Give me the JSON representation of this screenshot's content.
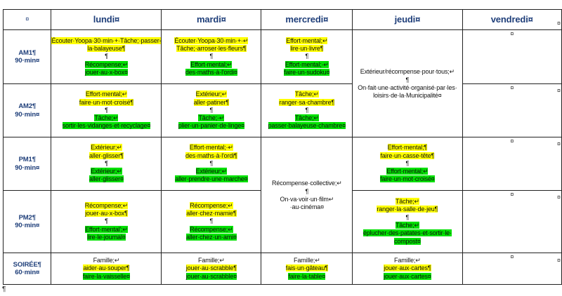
{
  "days": [
    "lundi¤",
    "mardi¤",
    "mercredi¤",
    "jeudi¤",
    "vendredi¤"
  ],
  "corner": "¤",
  "slots": [
    {
      "name": "AM1¶",
      "dur": "90·min¤"
    },
    {
      "name": "AM2¶",
      "dur": "90·min¤"
    },
    {
      "name": "PM1¶",
      "dur": "90·min¤"
    },
    {
      "name": "PM2¶",
      "dur": "90·min¤"
    },
    {
      "name": "SOIRÉE¶",
      "dur": "60·min¤"
    }
  ],
  "cells": {
    "am1_lundi": [
      {
        "t": "Écouter·Yoopa·30·min·+·Tâche;·passer-",
        "c": "y"
      },
      {
        "t": "la·balayeuse¶",
        "c": "y"
      },
      {
        "t": "¶",
        "c": ""
      },
      {
        "t": "Récompense;↵",
        "c": "g"
      },
      {
        "t": "jouer·au·x-box¤",
        "c": "g"
      }
    ],
    "am1_mardi": [
      {
        "t": "Écouter·Yoopa·30·min·+·↵",
        "c": "y"
      },
      {
        "t": "Tâche;·arroser·les·fleurs¶",
        "c": "y"
      },
      {
        "t": "¶",
        "c": ""
      },
      {
        "t": "Effort·mental;↵",
        "c": "g"
      },
      {
        "t": "des·maths·à·l'ordi¤",
        "c": "g"
      }
    ],
    "am1_mercredi": [
      {
        "t": "Effort·mental;↵",
        "c": "y"
      },
      {
        "t": "lire·un·livre¶",
        "c": "y"
      },
      {
        "t": "¶",
        "c": ""
      },
      {
        "t": "Effort·mental;·↵",
        "c": "g"
      },
      {
        "t": "faire·un·sudoku¤",
        "c": "g"
      }
    ],
    "jeudi_merged": [
      {
        "t": "Extérieur/récompense·pour·tous;↵",
        "c": ""
      },
      {
        "t": "¶",
        "c": ""
      },
      {
        "t": "On·fait·une·activité·organisé·par·les·",
        "c": ""
      },
      {
        "t": "loisirs·de·la·Municipalité¤",
        "c": ""
      }
    ],
    "am2_lundi": [
      {
        "t": "Effort·mental;↵",
        "c": "y"
      },
      {
        "t": "faire·un·mot·croisé¶",
        "c": "y"
      },
      {
        "t": "¶",
        "c": ""
      },
      {
        "t": "Tâche;↵",
        "c": "g"
      },
      {
        "t": "sortir·les·vidanges·et·recyclage¤",
        "c": "g"
      }
    ],
    "am2_mardi": [
      {
        "t": "Extérieur;↵",
        "c": "y"
      },
      {
        "t": "aller·patiner¶",
        "c": "y"
      },
      {
        "t": "¶",
        "c": ""
      },
      {
        "t": "Tâche;·↵",
        "c": "g"
      },
      {
        "t": "plier·un·panier·de·linge¤",
        "c": "g"
      }
    ],
    "am2_mercredi": [
      {
        "t": "Tâche;↵",
        "c": "y"
      },
      {
        "t": "ranger·sa·chambre¶",
        "c": "y"
      },
      {
        "t": "¶",
        "c": ""
      },
      {
        "t": "Tâche;↵",
        "c": "g"
      },
      {
        "t": "passer·balayeuse·chambre¤",
        "c": "g"
      }
    ],
    "pm1_lundi": [
      {
        "t": "Extérieur;↵",
        "c": "y"
      },
      {
        "t": "aller·glisser¶",
        "c": "y"
      },
      {
        "t": "¶",
        "c": ""
      },
      {
        "t": "Extérieur;↵",
        "c": "g"
      },
      {
        "t": "aller·glisser¤",
        "c": "g"
      }
    ],
    "pm1_mardi": [
      {
        "t": "Effort·mental;·↵",
        "c": "y"
      },
      {
        "t": "des·maths·à·l'ordi¶",
        "c": "y"
      },
      {
        "t": "¶",
        "c": ""
      },
      {
        "t": "Extérieur;↵",
        "c": "g"
      },
      {
        "t": "aller·prendre·une·marche¤",
        "c": "g"
      }
    ],
    "mercredi_merged": [
      {
        "t": "Récompense·collective;↵",
        "c": ""
      },
      {
        "t": "¶",
        "c": ""
      },
      {
        "t": "On·va·voir·un·film↵",
        "c": ""
      },
      {
        "t": "·au·cinéma¤",
        "c": ""
      }
    ],
    "pm1_jeudi": [
      {
        "t": "Effort·mental;¶",
        "c": "y"
      },
      {
        "t": "faire·un·casse-tête¶",
        "c": "y"
      },
      {
        "t": "¶",
        "c": ""
      },
      {
        "t": "Effort·mental;↵",
        "c": "g"
      },
      {
        "t": "faire·un·mot·croisé¤",
        "c": "g"
      }
    ],
    "pm2_lundi": [
      {
        "t": "Récompense;↵",
        "c": "y"
      },
      {
        "t": "jouer·au·x-box¶",
        "c": "y"
      },
      {
        "t": "¶",
        "c": ""
      },
      {
        "t": "Effort·mental';↵",
        "c": "g"
      },
      {
        "t": "lire·le·journal¤",
        "c": "g"
      }
    ],
    "pm2_mardi": [
      {
        "t": "Récompense;↵",
        "c": "y"
      },
      {
        "t": "aller·chez·mamie¶",
        "c": "y"
      },
      {
        "t": "¶",
        "c": ""
      },
      {
        "t": "Récompense;↵",
        "c": "g"
      },
      {
        "t": "aller·chez·un·ami¤",
        "c": "g"
      }
    ],
    "pm2_jeudi": [
      {
        "t": "Tâche;↵",
        "c": "y"
      },
      {
        "t": "ranger·la·salle·de·jeu¶",
        "c": "y"
      },
      {
        "t": "¶",
        "c": ""
      },
      {
        "t": "Tâche;↵",
        "c": "g"
      },
      {
        "t": "éplucher·des·patates·et·sortir·le·",
        "c": "g"
      },
      {
        "t": "compost¤",
        "c": "g"
      }
    ],
    "soiree_lundi": [
      {
        "t": "Famille;↵",
        "c": ""
      },
      {
        "t": "aider·au·souper¶",
        "c": "y"
      },
      {
        "t": "faire·la·vaisselle¤",
        "c": "g"
      }
    ],
    "soiree_mardi": [
      {
        "t": "Famille;↵",
        "c": ""
      },
      {
        "t": "jouer·au·scrabble¶",
        "c": "y"
      },
      {
        "t": "jouer·au·scrabble¤",
        "c": "g"
      }
    ],
    "soiree_mercredi": [
      {
        "t": "Famille;↵",
        "c": ""
      },
      {
        "t": "fais·un·gâteau¶",
        "c": "y"
      },
      {
        "t": "faire·la·table¤",
        "c": "g"
      }
    ],
    "soiree_jeudi": [
      {
        "t": "Famille;↵",
        "c": ""
      },
      {
        "t": "jouer·aux·cartes¶",
        "c": "y"
      },
      {
        "t": "jouer·aux·cartes¤",
        "c": "g"
      }
    ],
    "vendredi": "¤"
  },
  "end_mark": "¤",
  "trailing_pilcrow": "¶",
  "colors": {
    "yellow": "#ffff00",
    "green": "#00e000",
    "header_text": "#1f3f7a"
  }
}
